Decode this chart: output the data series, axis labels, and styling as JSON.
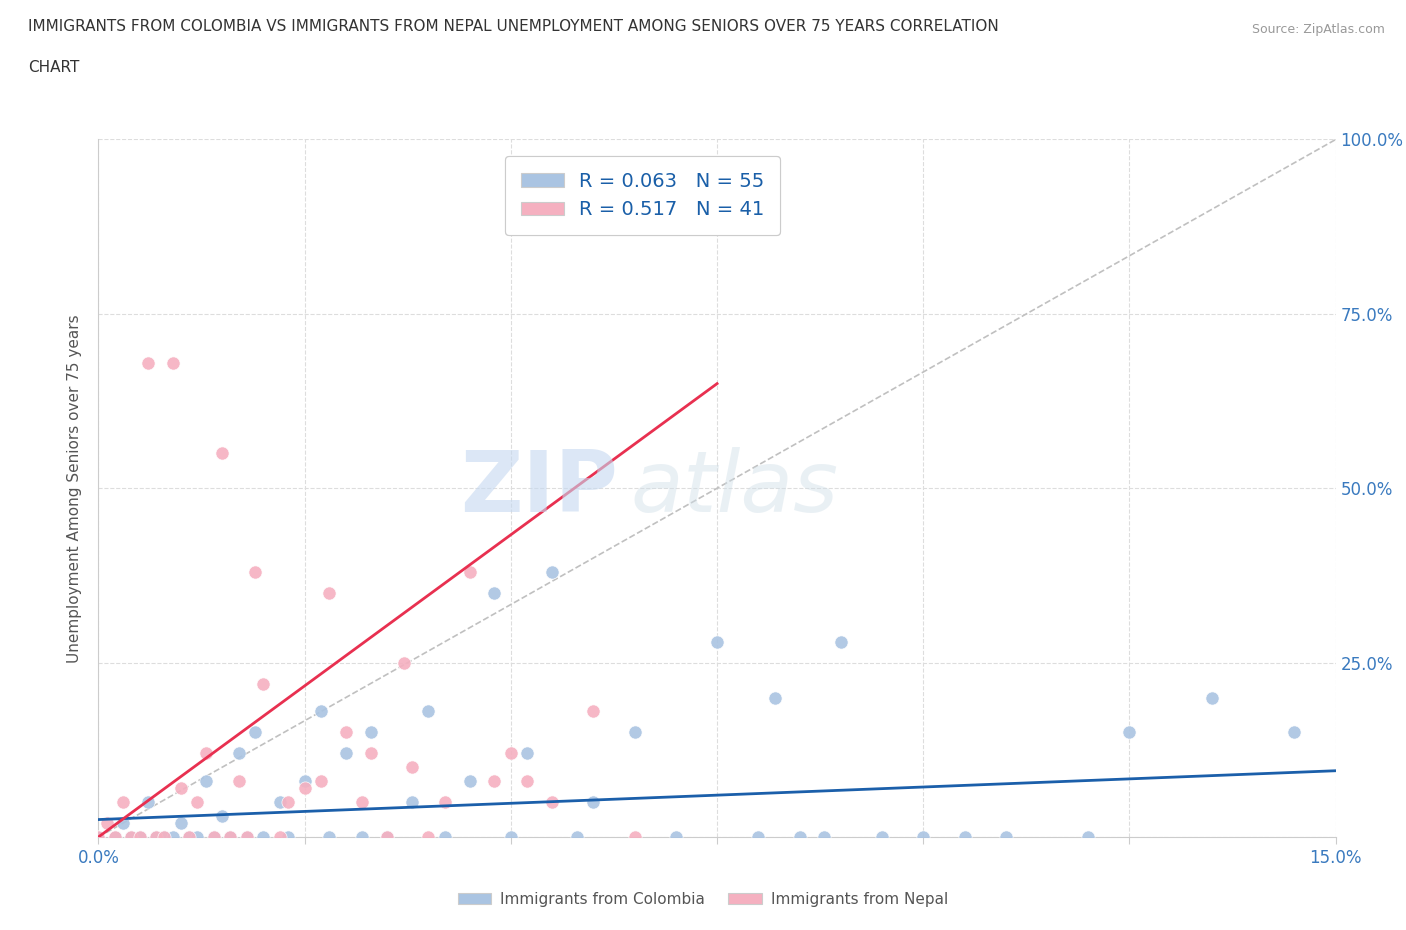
{
  "title_line1": "IMMIGRANTS FROM COLOMBIA VS IMMIGRANTS FROM NEPAL UNEMPLOYMENT AMONG SENIORS OVER 75 YEARS CORRELATION",
  "title_line2": "CHART",
  "source": "Source: ZipAtlas.com",
  "ylabel": "Unemployment Among Seniors over 75 years",
  "xlim": [
    0.0,
    0.15
  ],
  "ylim": [
    0.0,
    1.0
  ],
  "colombia_color": "#aac4e2",
  "nepal_color": "#f5b0c0",
  "colombia_R": 0.063,
  "colombia_N": 55,
  "nepal_R": 0.517,
  "nepal_N": 41,
  "trend_colombia_color": "#1b5faa",
  "trend_nepal_color": "#e83050",
  "diag_color": "#c0c0c0",
  "watermark_zip": "ZIP",
  "watermark_atlas": "atlas",
  "background_color": "#ffffff",
  "grid_color": "#dddddd",
  "colombia_scatter_x": [
    0.0,
    0.002,
    0.003,
    0.004,
    0.005,
    0.006,
    0.007,
    0.008,
    0.009,
    0.01,
    0.011,
    0.012,
    0.013,
    0.014,
    0.015,
    0.016,
    0.017,
    0.018,
    0.019,
    0.02,
    0.022,
    0.023,
    0.025,
    0.027,
    0.028,
    0.03,
    0.032,
    0.033,
    0.035,
    0.038,
    0.04,
    0.042,
    0.045,
    0.048,
    0.05,
    0.052,
    0.055,
    0.058,
    0.06,
    0.065,
    0.07,
    0.075,
    0.08,
    0.082,
    0.085,
    0.088,
    0.09,
    0.095,
    0.1,
    0.105,
    0.11,
    0.12,
    0.125,
    0.135,
    0.145
  ],
  "colombia_scatter_y": [
    0.0,
    0.0,
    0.02,
    0.0,
    0.0,
    0.05,
    0.0,
    0.0,
    0.0,
    0.02,
    0.0,
    0.0,
    0.08,
    0.0,
    0.03,
    0.0,
    0.12,
    0.0,
    0.15,
    0.0,
    0.05,
    0.0,
    0.08,
    0.18,
    0.0,
    0.12,
    0.0,
    0.15,
    0.0,
    0.05,
    0.18,
    0.0,
    0.08,
    0.35,
    0.0,
    0.12,
    0.38,
    0.0,
    0.05,
    0.15,
    0.0,
    0.28,
    0.0,
    0.2,
    0.0,
    0.0,
    0.28,
    0.0,
    0.0,
    0.0,
    0.0,
    0.0,
    0.15,
    0.2,
    0.15
  ],
  "nepal_scatter_x": [
    0.0,
    0.001,
    0.002,
    0.003,
    0.004,
    0.005,
    0.006,
    0.007,
    0.008,
    0.009,
    0.01,
    0.011,
    0.012,
    0.013,
    0.014,
    0.015,
    0.016,
    0.017,
    0.018,
    0.019,
    0.02,
    0.022,
    0.023,
    0.025,
    0.027,
    0.028,
    0.03,
    0.032,
    0.033,
    0.035,
    0.037,
    0.038,
    0.04,
    0.042,
    0.045,
    0.048,
    0.05,
    0.052,
    0.055,
    0.06,
    0.065
  ],
  "nepal_scatter_y": [
    0.0,
    0.02,
    0.0,
    0.05,
    0.0,
    0.0,
    0.68,
    0.0,
    0.0,
    0.68,
    0.07,
    0.0,
    0.05,
    0.12,
    0.0,
    0.55,
    0.0,
    0.08,
    0.0,
    0.38,
    0.22,
    0.0,
    0.05,
    0.07,
    0.08,
    0.35,
    0.15,
    0.05,
    0.12,
    0.0,
    0.25,
    0.1,
    0.0,
    0.05,
    0.38,
    0.08,
    0.12,
    0.08,
    0.05,
    0.18,
    0.0
  ],
  "colombia_trend_x": [
    0.0,
    0.15
  ],
  "colombia_trend_y": [
    0.025,
    0.095
  ],
  "nepal_trend_x": [
    0.0,
    0.075
  ],
  "nepal_trend_y": [
    0.0,
    0.65
  ]
}
